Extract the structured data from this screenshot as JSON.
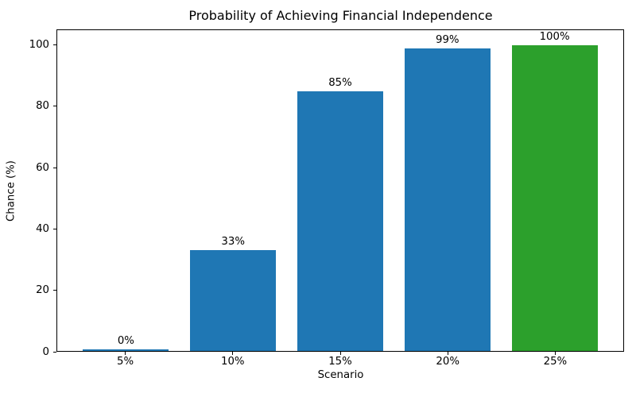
{
  "chart_data": {
    "type": "bar",
    "title": "Probability of Achieving Financial Independence",
    "xlabel": "Scenario",
    "ylabel": "Chance (%)",
    "categories": [
      "5%",
      "10%",
      "15%",
      "20%",
      "25%"
    ],
    "values": [
      0,
      33,
      85,
      99,
      100
    ],
    "bar_labels": [
      "0%",
      "33%",
      "85%",
      "99%",
      "100%"
    ],
    "bar_colors": [
      "#1f77b4",
      "#1f77b4",
      "#1f77b4",
      "#1f77b4",
      "#2ca02c"
    ],
    "yticks": [
      0,
      20,
      40,
      60,
      80,
      100
    ],
    "ylim": [
      0,
      105
    ],
    "grid": false,
    "legend": false,
    "bar_width_fraction": 0.8,
    "colors": {
      "bar_blue": "#1f77b4",
      "bar_green": "#2ca02c",
      "axis": "#000000",
      "background": "#ffffff"
    }
  }
}
